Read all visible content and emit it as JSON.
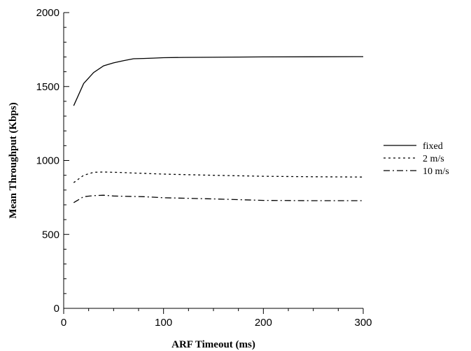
{
  "chart_data": {
    "type": "line",
    "title": "",
    "xlabel": "ARF Timeout (ms)",
    "ylabel": "Mean Throughput (Kbps)",
    "xlim": [
      0,
      300
    ],
    "ylim": [
      0,
      2000
    ],
    "xticks": [
      0,
      100,
      200,
      300
    ],
    "yticks": [
      0,
      500,
      1000,
      1500,
      2000
    ],
    "grid": false,
    "legend_position": "right",
    "series": [
      {
        "name": "fixed",
        "style": "solid",
        "color": "#000000",
        "x": [
          10,
          20,
          30,
          40,
          50,
          60,
          70,
          80,
          90,
          100,
          120,
          150,
          200,
          250,
          300
        ],
        "y": [
          1370,
          1520,
          1595,
          1640,
          1660,
          1675,
          1688,
          1690,
          1692,
          1695,
          1697,
          1698,
          1700,
          1701,
          1702
        ]
      },
      {
        "name": "2 m/s",
        "style": "dotted",
        "color": "#000000",
        "x": [
          10,
          20,
          30,
          40,
          50,
          60,
          70,
          80,
          90,
          100,
          150,
          200,
          250,
          300
        ],
        "y": [
          850,
          900,
          920,
          922,
          920,
          918,
          915,
          913,
          910,
          908,
          900,
          893,
          890,
          888
        ]
      },
      {
        "name": "10 m/s",
        "style": "dashdot",
        "color": "#000000",
        "x": [
          10,
          20,
          30,
          40,
          50,
          60,
          80,
          100,
          150,
          200,
          250,
          300
        ],
        "y": [
          715,
          755,
          762,
          765,
          760,
          758,
          755,
          748,
          740,
          730,
          728,
          728
        ]
      }
    ]
  }
}
